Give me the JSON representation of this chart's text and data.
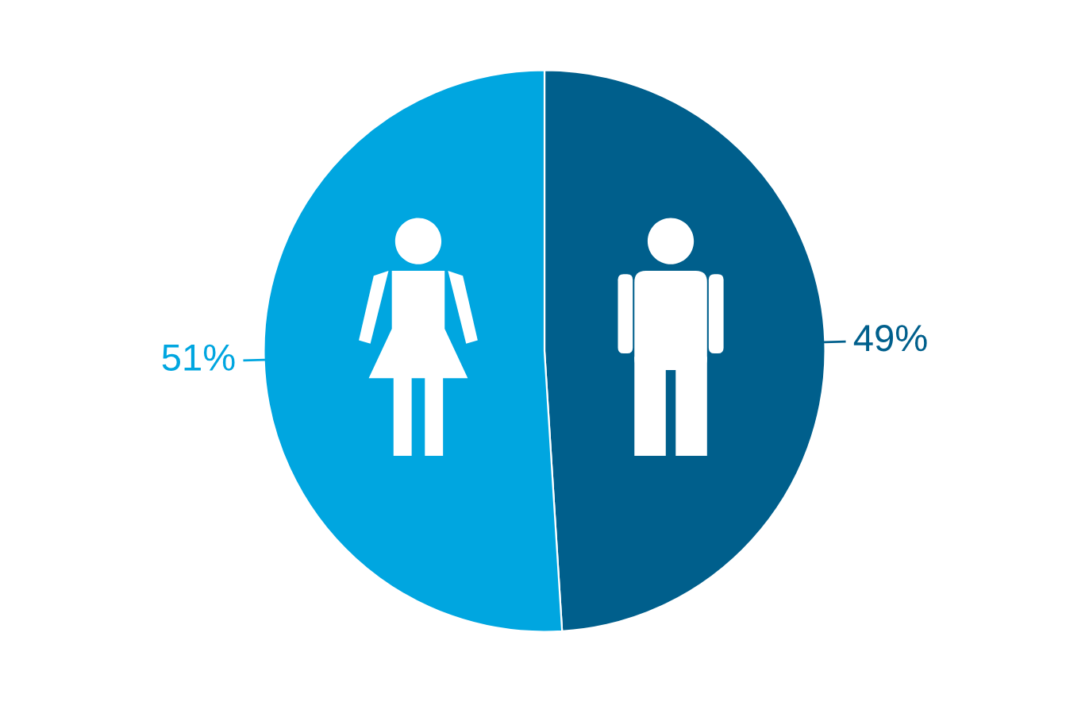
{
  "chart_data": {
    "type": "pie",
    "categories": [
      null,
      null
    ],
    "values": [
      49,
      51
    ],
    "colors": [
      "#005f8c",
      "#00a6e0"
    ],
    "value_labels": [
      "49%",
      "51%"
    ],
    "legend": false
  }
}
